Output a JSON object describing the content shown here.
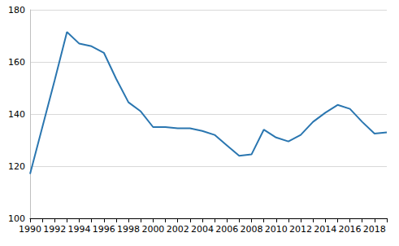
{
  "chart_data": {
    "type": "line",
    "categories": [
      "1990",
      null,
      "1992",
      null,
      "1994",
      null,
      "1996",
      null,
      "1998",
      null,
      "2000",
      null,
      "2002",
      null,
      "2004",
      null,
      "2006",
      null,
      "2008",
      null,
      "2010",
      null,
      "2012",
      null,
      "2014",
      null,
      "2016",
      null,
      "2018",
      null
    ],
    "values": [
      117,
      135,
      153,
      171.5,
      167,
      166,
      163.5,
      153.5,
      144.5,
      141,
      135,
      135,
      134.5,
      134.5,
      133.5,
      132,
      128,
      124,
      124.5,
      134,
      131,
      129.5,
      132,
      137,
      140.5,
      143.5,
      142,
      137,
      132.5,
      133
    ],
    "color": "#2a76b0",
    "ylim": [
      100,
      180
    ],
    "yticks": [
      100,
      120,
      140,
      160,
      180
    ],
    "grid": true
  }
}
